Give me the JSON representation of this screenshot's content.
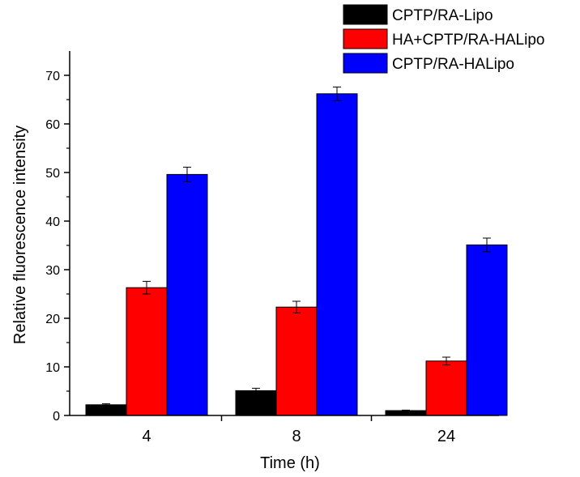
{
  "chart_data": {
    "type": "bar",
    "title": "",
    "xlabel": "Time (h)",
    "ylabel": "Relative fluorescence intensity",
    "categories": [
      "4",
      "8",
      "24"
    ],
    "ylim": [
      0,
      75
    ],
    "yticks": [
      0,
      10,
      20,
      30,
      40,
      50,
      60,
      70
    ],
    "legend_position": "top-right",
    "grid": false,
    "series": [
      {
        "name": "CPTP/RA-Lipo",
        "color": "#000000",
        "values": [
          2.2,
          5.1,
          1.0
        ],
        "errors": [
          0.2,
          0.5,
          0.1
        ]
      },
      {
        "name": "HA+CPTP/RA-HALipo",
        "color": "#ff0000",
        "values": [
          26.3,
          22.3,
          11.2
        ],
        "errors": [
          1.3,
          1.2,
          0.8
        ]
      },
      {
        "name": "CPTP/RA-HALipo",
        "color": "#0000ff",
        "values": [
          49.6,
          66.2,
          35.1
        ],
        "errors": [
          1.5,
          1.4,
          1.4
        ]
      }
    ]
  }
}
